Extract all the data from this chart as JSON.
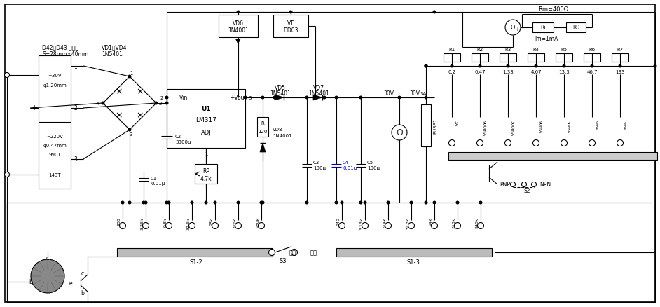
{
  "bg_color": "#ffffff",
  "line_color": "#000000",
  "fig_width": 9.42,
  "fig_height": 4.39,
  "dpi": 100,
  "r_labels": [
    "R1",
    "R2",
    "R3",
    "R4",
    "R5",
    "R6",
    "R7"
  ],
  "r_vals": [
    "0.2",
    "0.47",
    "1.33",
    "4.67",
    "13.3",
    "46.7",
    "133"
  ],
  "r_currents": [
    "3A",
    "900mA",
    "300mA",
    "90mA",
    "30mA",
    "9mA",
    "3mA"
  ],
  "bot_left_vals": [
    "980",
    "3.26k",
    "9.8k",
    "32.6k",
    "98k",
    "326k",
    "980k"
  ],
  "bot_right_vals": [
    "940",
    "3.13k",
    "9.4k",
    "31.3k",
    "94k",
    "313k",
    "940k"
  ]
}
